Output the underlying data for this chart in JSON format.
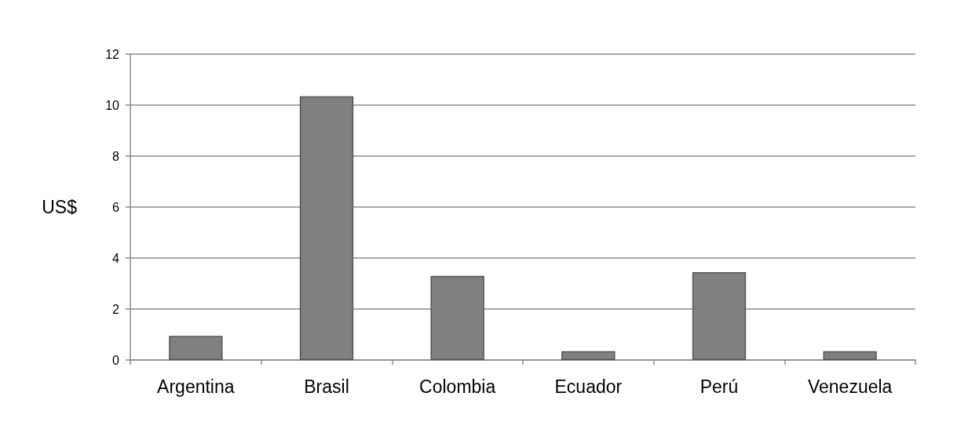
{
  "chart_data": {
    "type": "bar",
    "ylabel": "US$",
    "categories": [
      "Argentina",
      "Brasil",
      "Colombia",
      "Ecuador",
      "Perú",
      "Venezuela"
    ],
    "values": [
      0.95,
      10.35,
      3.3,
      0.35,
      3.45,
      0.35
    ],
    "color": "#808080",
    "ylim": [
      0,
      12
    ],
    "yticks": [
      0,
      2,
      4,
      6,
      8,
      10,
      12
    ],
    "grid": "y"
  }
}
